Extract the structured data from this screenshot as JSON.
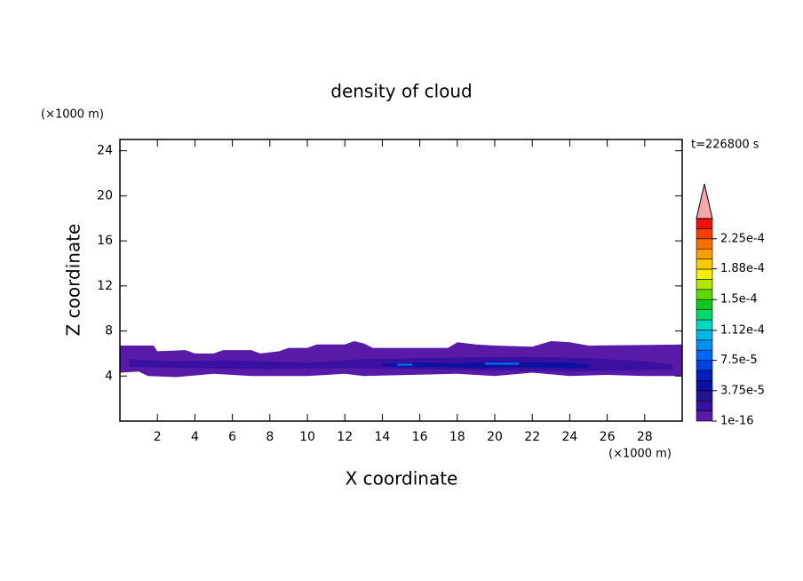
{
  "chart_data": {
    "type": "contour",
    "title": "density of cloud",
    "x_label": "X coordinate",
    "y_label": "Z coordinate",
    "x_unit": "(×1000 m)",
    "y_unit": "(×1000 m)",
    "time_label": "t=226800 s",
    "xlim": [
      0,
      30
    ],
    "ylim": [
      0,
      25
    ],
    "xticks": [
      2,
      4,
      6,
      8,
      10,
      12,
      14,
      16,
      18,
      20,
      22,
      24,
      26,
      28
    ],
    "yticks": [
      4,
      8,
      12,
      16,
      20,
      24
    ],
    "contours": [
      {
        "level": 1e-16,
        "x": [
          0,
          1.8,
          2,
          3.5,
          4,
          5,
          5.5,
          7,
          7.5,
          8.5,
          9,
          10,
          10.5,
          12,
          12.5,
          13,
          13.5,
          17.5,
          18,
          19,
          20,
          22,
          23,
          24,
          25,
          30,
          30,
          28,
          26,
          24,
          22,
          20,
          18,
          13,
          12,
          10,
          7,
          5,
          3,
          1.5,
          1,
          0
        ],
        "y": [
          6.7,
          6.7,
          6.2,
          6.3,
          6.0,
          6.0,
          6.3,
          6.3,
          6.0,
          6.2,
          6.5,
          6.5,
          6.8,
          6.8,
          7.1,
          6.9,
          6.5,
          6.5,
          7.0,
          6.8,
          6.7,
          6.6,
          7.1,
          7.0,
          6.7,
          6.8,
          4.0,
          4.0,
          4.1,
          4.0,
          4.3,
          4.0,
          4.2,
          4.0,
          4.2,
          4.0,
          4.0,
          4.2,
          3.9,
          4.0,
          4.4,
          4.3
        ]
      },
      {
        "level": 1.25e-05,
        "x": [
          0.5,
          3,
          6,
          10,
          13,
          17,
          21,
          25,
          28,
          29.5,
          29.5,
          27,
          24,
          20,
          16,
          12,
          8,
          4,
          0.5
        ],
        "y": [
          5.5,
          5.3,
          5.4,
          5.2,
          5.5,
          5.6,
          5.7,
          5.6,
          5.3,
          5.0,
          4.6,
          4.5,
          4.4,
          4.5,
          4.6,
          4.7,
          4.6,
          4.7,
          4.8
        ]
      },
      {
        "level": 3.75e-05,
        "x": [
          14,
          16,
          18,
          20,
          22,
          24,
          25,
          25,
          23,
          21,
          19,
          17,
          15,
          14
        ],
        "y": [
          5.1,
          5.2,
          5.1,
          5.3,
          5.2,
          5.2,
          5.0,
          4.7,
          4.7,
          4.8,
          4.7,
          4.8,
          4.8,
          4.9
        ]
      },
      {
        "level": 7.5e-05,
        "x": [
          14.8,
          15.6,
          15.6,
          14.8
        ],
        "y": [
          5.1,
          5.1,
          4.9,
          4.9
        ]
      },
      {
        "level": 7.5e-05,
        "x": [
          19.5,
          21.3,
          21.3,
          19.5
        ],
        "y": [
          5.2,
          5.2,
          5.0,
          5.0
        ]
      }
    ],
    "colorbar": {
      "lim": [
        0,
        0.00025
      ],
      "ticks": [
        1e-16,
        {
          "value": 3.75e-05,
          "label": "3.75e-5"
        },
        {
          "value": 7.5e-05,
          "label": "7.5e-5"
        },
        {
          "value": 0.000112,
          "label": "1.12e-4"
        },
        {
          "value": 0.00015,
          "label": "1.5e-4"
        },
        {
          "value": 0.000188,
          "label": "1.88e-4"
        },
        {
          "value": 0.000225,
          "label": "2.25e-4"
        }
      ],
      "colors": [
        "#5a1aa8",
        "#3a10a0",
        "#201890",
        "#0a10a0",
        "#0020c0",
        "#0040e0",
        "#0068f0",
        "#0090f0",
        "#00b8e8",
        "#00d8c0",
        "#00d870",
        "#10c820",
        "#60d800",
        "#b0e800",
        "#f0f000",
        "#f8c800",
        "#f8a000",
        "#f87000",
        "#f84000",
        "#f01010"
      ],
      "extend_color": "#f4a8a8"
    }
  }
}
